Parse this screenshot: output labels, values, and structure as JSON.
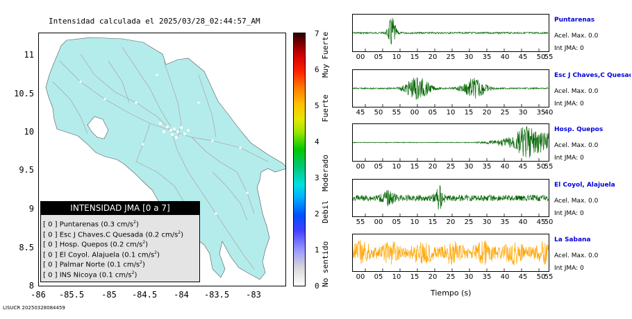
{
  "map": {
    "title": "Intensidad calculada el 2025/03/28_02:44:57_AM",
    "lat_labels": [
      "11",
      "10.5",
      "10",
      "9.5",
      "9",
      "8.5",
      "8"
    ],
    "lon_labels": [
      "-86",
      "-85.5",
      "-85",
      "-84.5",
      "-84",
      "-83.5",
      "-83"
    ],
    "land_color": "#b4ecec",
    "road_color": "#b0b0b0"
  },
  "colorbar": {
    "numbers": [
      "7",
      "6",
      "5",
      "4",
      "3",
      "2",
      "1",
      "0"
    ],
    "words": [
      "Muy Fuerte",
      "Fuerte",
      "Moderado",
      "Debil",
      "No sentido"
    ]
  },
  "legend": {
    "title": "INTENSIDAD JMA [0 a 7]",
    "items": [
      {
        "level": "[ 0 ]",
        "name": "Puntarenas",
        "value": "(0.3 cm/s",
        "sup": "2",
        "close": ")"
      },
      {
        "level": "[ 0 ]",
        "name": "Esc J Chaves.C Quesada",
        "value": "(0.2 cm/s",
        "sup": "2",
        "close": ")"
      },
      {
        "level": "[ 0 ]",
        "name": "Hosp. Quepos",
        "value": "(0.2 cm/s",
        "sup": "2",
        "close": ")"
      },
      {
        "level": "[ 0 ]",
        "name": "El Coyol. Alajuela",
        "value": "(0.1 cm/s",
        "sup": "2",
        "close": ")"
      },
      {
        "level": "[ 0 ]",
        "name": "Palmar Norte",
        "value": "(0.1 cm/s",
        "sup": "2",
        "close": ")"
      },
      {
        "level": "[ 0 ]",
        "name": "INS Nicoya",
        "value": "(0.1 cm/s",
        "sup": "2",
        "close": ")"
      }
    ]
  },
  "footer": "LISUCR 20250328084459",
  "traces": [
    {
      "station": "Puntarenas",
      "acel": "Acel. Max. 0.0",
      "int": "Int JMA: 0",
      "color": "#006400",
      "ticks": [
        "00",
        "05",
        "10",
        "15",
        "20",
        "25",
        "30",
        "35",
        "40",
        "45",
        "50",
        "55"
      ]
    },
    {
      "station": "Esc J Chaves,C Quesada",
      "acel": "Acel. Max. 0.0",
      "int": "Int JMA: 0",
      "color": "#006400",
      "ticks": [
        "45",
        "50",
        "55",
        "00",
        "05",
        "10",
        "15",
        "20",
        "25",
        "30",
        "35",
        "40"
      ]
    },
    {
      "station": "Hosp. Quepos",
      "acel": "Acel. Max. 0.0",
      "int": "Int JMA: 0",
      "color": "#006400",
      "ticks": [
        "00",
        "05",
        "10",
        "15",
        "20",
        "25",
        "30",
        "35",
        "40",
        "45",
        "50",
        "55"
      ]
    },
    {
      "station": "El Coyol, Alajuela",
      "acel": "Acel. Max. 0.0",
      "int": "Int JMA: 0",
      "color": "#006400",
      "ticks": [
        "55",
        "00",
        "05",
        "10",
        "15",
        "20",
        "25",
        "30",
        "35",
        "40",
        "45",
        "50"
      ]
    },
    {
      "station": "La Sabana",
      "acel": "Acel. Max. 0.0",
      "int": "Int JMA: 0",
      "color": "#ffa500",
      "ticks": [
        "00",
        "05",
        "10",
        "15",
        "20",
        "25",
        "30",
        "35",
        "40",
        "45",
        "50",
        "55"
      ]
    }
  ],
  "xaxis_label": "Tiempo (s)"
}
